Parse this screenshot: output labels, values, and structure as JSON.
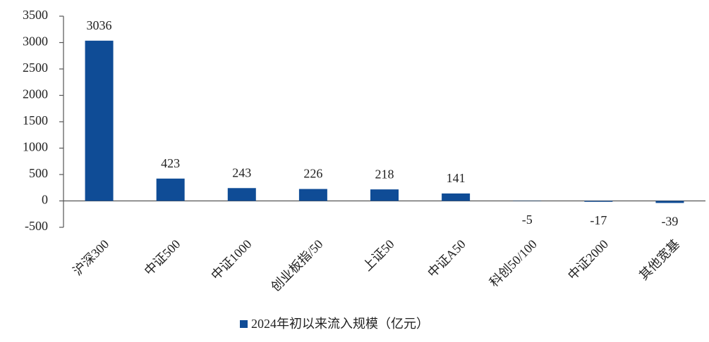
{
  "chart_data": {
    "type": "bar",
    "categories": [
      "沪深300",
      "中证500",
      "中证1000",
      "创业板指/50",
      "上证50",
      "中证A50",
      "科创50/100",
      "中证2000",
      "其他宽基"
    ],
    "series": [
      {
        "name": "2024年初以来流入规模（亿元）",
        "color": "#0f4c96",
        "values": [
          3036,
          423,
          243,
          226,
          218,
          141,
          -5,
          -17,
          -39
        ]
      }
    ],
    "ylim": [
      -500,
      3500
    ],
    "yticks": [
      -500,
      0,
      500,
      1000,
      1500,
      2000,
      2500,
      3000,
      3500
    ],
    "grid": false,
    "legend": "bottom"
  }
}
